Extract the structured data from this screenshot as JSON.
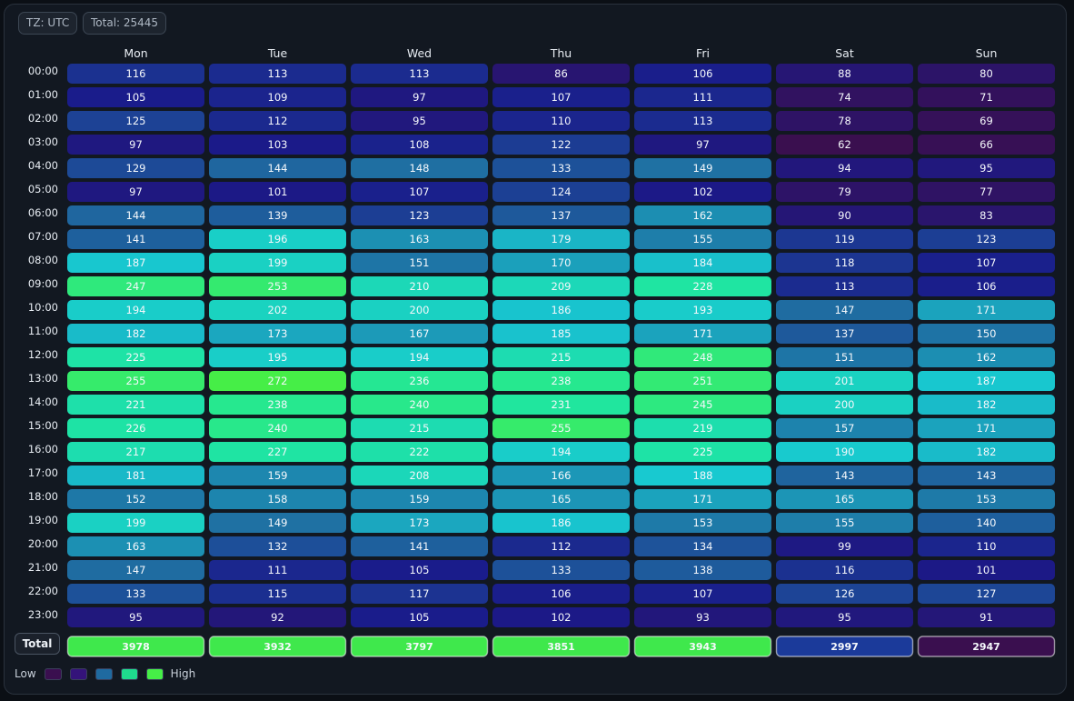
{
  "header": {
    "timezone_label": "TZ: UTC",
    "total_label": "Total: 25445"
  },
  "legend": {
    "low_label": "Low",
    "high_label": "High",
    "swatches": [
      "#3a0f4f",
      "#34137a",
      "#1f6aa0",
      "#1fdc8e",
      "#46ee47"
    ]
  },
  "total_row_label": "Total",
  "chart_data": {
    "type": "heatmap",
    "x_categories": [
      "Mon",
      "Tue",
      "Wed",
      "Thu",
      "Fri",
      "Sat",
      "Sun"
    ],
    "y_categories": [
      "00:00",
      "01:00",
      "02:00",
      "03:00",
      "04:00",
      "05:00",
      "06:00",
      "07:00",
      "08:00",
      "09:00",
      "10:00",
      "11:00",
      "12:00",
      "13:00",
      "14:00",
      "15:00",
      "16:00",
      "17:00",
      "18:00",
      "19:00",
      "20:00",
      "21:00",
      "22:00",
      "23:00"
    ],
    "values": [
      [
        116,
        113,
        113,
        86,
        106,
        88,
        80
      ],
      [
        105,
        109,
        97,
        107,
        111,
        74,
        71
      ],
      [
        125,
        112,
        95,
        110,
        113,
        78,
        69
      ],
      [
        97,
        103,
        108,
        122,
        97,
        62,
        66
      ],
      [
        129,
        144,
        148,
        133,
        149,
        94,
        95
      ],
      [
        97,
        101,
        107,
        124,
        102,
        79,
        77
      ],
      [
        144,
        139,
        123,
        137,
        162,
        90,
        83
      ],
      [
        141,
        196,
        163,
        179,
        155,
        119,
        123
      ],
      [
        187,
        199,
        151,
        170,
        184,
        118,
        107
      ],
      [
        247,
        253,
        210,
        209,
        228,
        113,
        106
      ],
      [
        194,
        202,
        200,
        186,
        193,
        147,
        171
      ],
      [
        182,
        173,
        167,
        185,
        171,
        137,
        150
      ],
      [
        225,
        195,
        194,
        215,
        248,
        151,
        162
      ],
      [
        255,
        272,
        236,
        238,
        251,
        201,
        187
      ],
      [
        221,
        238,
        240,
        231,
        245,
        200,
        182
      ],
      [
        226,
        240,
        215,
        255,
        219,
        157,
        171
      ],
      [
        217,
        227,
        222,
        194,
        225,
        190,
        182
      ],
      [
        181,
        159,
        208,
        166,
        188,
        143,
        143
      ],
      [
        152,
        158,
        159,
        165,
        171,
        165,
        153
      ],
      [
        199,
        149,
        173,
        186,
        153,
        155,
        140
      ],
      [
        163,
        132,
        141,
        112,
        134,
        99,
        110
      ],
      [
        147,
        111,
        105,
        133,
        138,
        116,
        101
      ],
      [
        133,
        115,
        117,
        106,
        107,
        126,
        127
      ],
      [
        95,
        92,
        105,
        102,
        93,
        95,
        91
      ]
    ],
    "column_totals": [
      3978,
      3932,
      3797,
      3851,
      3943,
      2997,
      2947
    ],
    "total": 25445,
    "colorscale": [
      "#3a0f4f",
      "#1a1a8a",
      "#1f6aa0",
      "#18c9d0",
      "#1fe6a0",
      "#46ee47"
    ],
    "legend_placement": "bottom-left"
  }
}
